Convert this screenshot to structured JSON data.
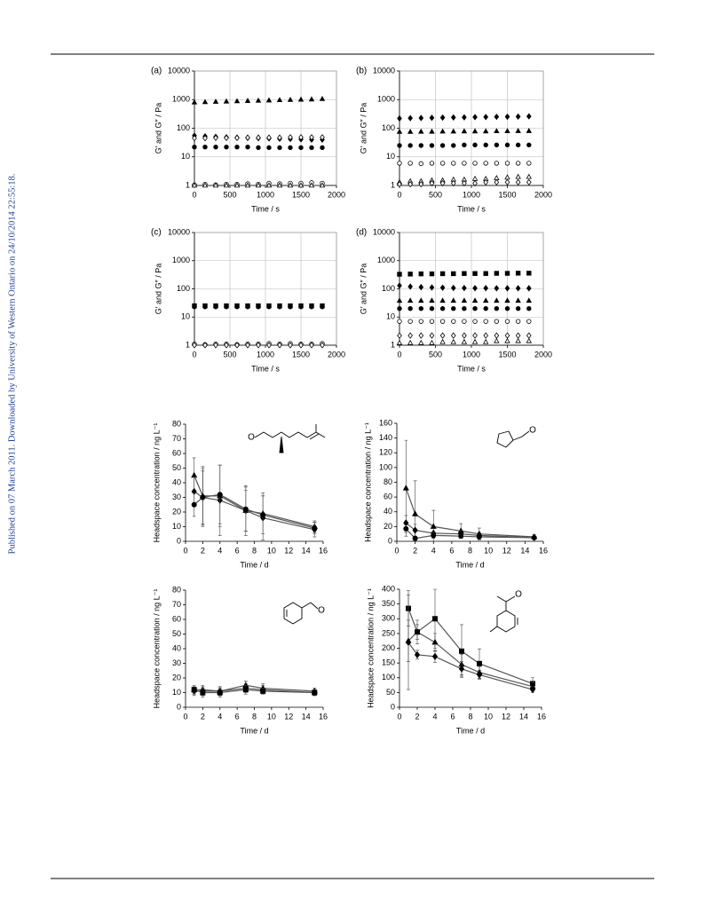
{
  "side_note": "Published on 07 March 2011. Downloaded by University of Western Ontario on 24/10/2014 22:55:18.",
  "chart_data": [
    {
      "type": "scatter",
      "panel": "(a)",
      "xlabel": "Time / s",
      "ylabel": "G′ and G″ / Pa",
      "ylog": true,
      "grid": true,
      "color": "#000000",
      "xlim": [
        0,
        2000
      ],
      "xticks": [
        0,
        500,
        1000,
        1500,
        2000
      ],
      "ylim": [
        1,
        10000
      ],
      "yticks": [
        1,
        10,
        100,
        1000,
        10000
      ],
      "x": [
        0,
        150,
        300,
        450,
        600,
        750,
        900,
        1050,
        1200,
        1350,
        1500,
        1650,
        1800
      ],
      "series": [
        {
          "marker": "triangle",
          "filled": true,
          "values": [
            800,
            820,
            840,
            860,
            880,
            900,
            920,
            940,
            960,
            980,
            1000,
            1020,
            1050
          ]
        },
        {
          "marker": "diamond",
          "filled": true,
          "values": [
            55,
            52,
            50,
            48,
            47,
            46,
            45,
            44,
            43,
            42,
            41,
            40,
            40
          ]
        },
        {
          "marker": "diamond",
          "filled": false,
          "values": [
            45,
            45,
            46,
            46,
            46,
            47,
            47,
            47,
            47,
            48,
            48,
            48,
            48
          ]
        },
        {
          "marker": "circle",
          "filled": true,
          "values": [
            22,
            22,
            22,
            22,
            22,
            22,
            21,
            21,
            21,
            21,
            21,
            21,
            21
          ]
        },
        {
          "marker": "circle",
          "filled": false,
          "values": [
            1.05,
            1.1,
            1.05,
            1.1,
            1.1,
            1.15,
            1.1,
            1.2,
            1.15,
            1.2,
            1.2,
            1.25,
            1.2
          ]
        },
        {
          "marker": "triangle",
          "filled": false,
          "values": [
            1,
            1,
            1,
            1,
            1,
            1,
            1,
            1,
            1,
            1,
            1,
            1,
            1
          ]
        }
      ]
    },
    {
      "type": "scatter",
      "panel": "(b)",
      "xlabel": "Time / s",
      "ylabel": "G′ and G″ / Pa",
      "ylog": true,
      "grid": true,
      "color": "#000000",
      "xlim": [
        0,
        2000
      ],
      "xticks": [
        0,
        500,
        1000,
        1500,
        2000
      ],
      "ylim": [
        1,
        10000
      ],
      "yticks": [
        1,
        10,
        100,
        1000,
        10000
      ],
      "x": [
        0,
        150,
        300,
        450,
        600,
        750,
        900,
        1050,
        1200,
        1350,
        1500,
        1650,
        1800
      ],
      "series": [
        {
          "marker": "diamond",
          "filled": true,
          "values": [
            220,
            225,
            228,
            232,
            235,
            238,
            240,
            244,
            246,
            250,
            252,
            256,
            260
          ]
        },
        {
          "marker": "triangle",
          "filled": true,
          "values": [
            75,
            75,
            76,
            76,
            77,
            77,
            78,
            78,
            78,
            79,
            79,
            80,
            80
          ]
        },
        {
          "marker": "circle",
          "filled": true,
          "values": [
            25,
            25,
            25,
            25,
            25,
            25,
            26,
            26,
            26,
            26,
            26,
            26,
            26
          ]
        },
        {
          "marker": "circle",
          "filled": false,
          "values": [
            6,
            6,
            5.8,
            6,
            6,
            6,
            6,
            6,
            6,
            6,
            6,
            6,
            6
          ]
        },
        {
          "marker": "triangle",
          "filled": false,
          "values": [
            1.3,
            1.4,
            1.4,
            1.5,
            1.5,
            1.6,
            1.6,
            1.7,
            1.7,
            1.8,
            1.9,
            2,
            2
          ]
        },
        {
          "marker": "diamond",
          "filled": false,
          "values": [
            1.1,
            1.1,
            1.1,
            1.2,
            1.2,
            1.2,
            1.2,
            1.2,
            1.3,
            1.3,
            1.3,
            1.3,
            1.3
          ]
        }
      ]
    },
    {
      "type": "scatter",
      "panel": "(c)",
      "xlabel": "Time / s",
      "ylabel": "G′ and G″ / Pa",
      "ylog": true,
      "grid": true,
      "color": "#000000",
      "xlim": [
        0,
        2000
      ],
      "xticks": [
        0,
        500,
        1000,
        1500,
        2000
      ],
      "ylim": [
        1,
        10000
      ],
      "yticks": [
        1,
        10,
        100,
        1000,
        10000
      ],
      "x": [
        0,
        150,
        300,
        450,
        600,
        750,
        900,
        1050,
        1200,
        1350,
        1500,
        1650,
        1800
      ],
      "series": [
        {
          "marker": "circle",
          "filled": true,
          "values": [
            23,
            23,
            23,
            23,
            23,
            23,
            23,
            23,
            23,
            23,
            23,
            23,
            23
          ]
        },
        {
          "marker": "square",
          "filled": true,
          "values": [
            25,
            25,
            25,
            25,
            25,
            25,
            25,
            25,
            25,
            25,
            25,
            25,
            25
          ]
        },
        {
          "marker": "circle",
          "filled": false,
          "values": [
            1.1,
            1.05,
            1.1,
            1.1,
            1.05,
            1.1,
            1.1,
            1.15,
            1.1,
            1.15,
            1.1,
            1.1,
            1.15
          ]
        },
        {
          "marker": "diamond",
          "filled": false,
          "values": [
            1,
            1,
            1,
            1,
            1,
            1,
            1,
            1,
            1,
            1,
            1,
            1,
            1
          ]
        }
      ]
    },
    {
      "type": "scatter",
      "panel": "(d)",
      "xlabel": "Time / s",
      "ylabel": "G′ and G″ / Pa",
      "ylog": true,
      "grid": true,
      "color": "#000000",
      "xlim": [
        0,
        2000
      ],
      "xticks": [
        0,
        500,
        1000,
        1500,
        2000
      ],
      "ylim": [
        1,
        10000
      ],
      "yticks": [
        1,
        10,
        100,
        1000,
        10000
      ],
      "x": [
        0,
        150,
        300,
        450,
        600,
        750,
        900,
        1050,
        1200,
        1350,
        1500,
        1650,
        1800
      ],
      "series": [
        {
          "marker": "square",
          "filled": true,
          "values": [
            330,
            335,
            340,
            340,
            345,
            345,
            350,
            350,
            350,
            355,
            355,
            360,
            360
          ]
        },
        {
          "marker": "diamond",
          "filled": true,
          "values": [
            130,
            120,
            115,
            112,
            110,
            108,
            107,
            106,
            106,
            105,
            105,
            105,
            105
          ]
        },
        {
          "marker": "triangle",
          "filled": true,
          "values": [
            38,
            38,
            38,
            38,
            38,
            38,
            38,
            38,
            38,
            38,
            38,
            38,
            38
          ]
        },
        {
          "marker": "circle",
          "filled": true,
          "values": [
            20,
            20,
            20,
            20,
            20,
            20,
            20,
            20,
            20,
            20,
            20,
            20,
            20
          ]
        },
        {
          "marker": "circle",
          "filled": false,
          "values": [
            7,
            7,
            7,
            7,
            7,
            7,
            7,
            7,
            7,
            7,
            7,
            7,
            7
          ]
        },
        {
          "marker": "diamond",
          "filled": false,
          "values": [
            2.2,
            2.2,
            2.2,
            2.2,
            2.2,
            2.2,
            2.2,
            2.2,
            2.2,
            2.2,
            2.2,
            2.2,
            2.2
          ]
        },
        {
          "marker": "triangle",
          "filled": false,
          "values": [
            1.2,
            1.2,
            1.2,
            1.2,
            1.3,
            1.3,
            1.3,
            1.3,
            1.3,
            1.4,
            1.4,
            1.4,
            1.4
          ]
        }
      ]
    },
    {
      "type": "line",
      "xlabel": "Time / d",
      "ylabel": "Headspace concentration / ng L⁻¹",
      "structure_atom": "O",
      "grid": false,
      "color": "#000000",
      "line_color": "#555555",
      "xlim": [
        0,
        16
      ],
      "xticks": [
        0,
        2,
        4,
        6,
        8,
        10,
        12,
        14,
        16
      ],
      "ylim": [
        0,
        80
      ],
      "yticks": [
        0,
        10,
        20,
        30,
        40,
        50,
        60,
        70,
        80
      ],
      "x": [
        1,
        2,
        4,
        7,
        9,
        15
      ],
      "series": [
        {
          "marker": "triangle",
          "filled": true,
          "values": [
            45,
            31,
            31,
            21,
            19,
            10
          ],
          "errors": [
            12,
            20,
            21,
            17,
            14,
            4
          ]
        },
        {
          "marker": "diamond",
          "filled": true,
          "values": [
            34,
            30,
            28,
            21,
            16,
            8
          ],
          "errors": [
            10,
            20,
            24,
            14,
            15,
            5
          ]
        },
        {
          "marker": "circle",
          "filled": true,
          "values": [
            25,
            30,
            32,
            22,
            18,
            9
          ],
          "errors": [
            8,
            18,
            20,
            15,
            13,
            4
          ]
        }
      ]
    },
    {
      "type": "line",
      "xlabel": "Time / d",
      "ylabel": "Headspace concentration / ng L⁻¹",
      "structure_atom": "O",
      "grid": false,
      "color": "#000000",
      "line_color": "#555555",
      "xlim": [
        0,
        16
      ],
      "xticks": [
        0,
        2,
        4,
        6,
        8,
        10,
        12,
        14,
        16
      ],
      "ylim": [
        0,
        160
      ],
      "yticks": [
        0,
        20,
        40,
        60,
        80,
        100,
        120,
        140,
        160
      ],
      "x": [
        1,
        2,
        4,
        7,
        9,
        15
      ],
      "series": [
        {
          "marker": "triangle",
          "filled": true,
          "values": [
            72,
            37,
            20,
            14,
            10,
            6
          ],
          "errors": [
            65,
            45,
            22,
            10,
            8,
            3
          ]
        },
        {
          "marker": "diamond",
          "filled": true,
          "values": [
            25,
            15,
            11,
            10,
            8,
            5
          ],
          "errors": [
            10,
            8,
            6,
            5,
            4,
            2
          ]
        },
        {
          "marker": "circle",
          "filled": true,
          "values": [
            17,
            4,
            8,
            7,
            6,
            5
          ],
          "errors": [
            5,
            3,
            4,
            3,
            3,
            2
          ]
        }
      ]
    },
    {
      "type": "line",
      "xlabel": "Time / d",
      "ylabel": "Headspace concentration / ng L⁻¹",
      "structure_atom": "O",
      "grid": false,
      "color": "#000000",
      "line_color": "#555555",
      "xlim": [
        0,
        16
      ],
      "xticks": [
        0,
        2,
        4,
        6,
        8,
        10,
        12,
        14,
        16
      ],
      "ylim": [
        0,
        80
      ],
      "yticks": [
        0,
        10,
        20,
        30,
        40,
        50,
        60,
        70,
        80
      ],
      "x": [
        1,
        2,
        4,
        7,
        9,
        15
      ],
      "series": [
        {
          "marker": "triangle",
          "filled": true,
          "values": [
            12,
            12,
            11,
            15,
            13,
            11
          ],
          "errors": [
            3,
            3,
            3,
            3,
            3,
            2
          ]
        },
        {
          "marker": "diamond",
          "filled": true,
          "values": [
            11,
            11,
            11,
            13,
            12,
            10
          ],
          "errors": [
            3,
            3,
            3,
            3,
            3,
            2
          ]
        },
        {
          "marker": "square",
          "filled": true,
          "values": [
            12,
            10,
            10,
            12,
            11,
            10
          ],
          "errors": [
            3,
            3,
            3,
            3,
            2,
            2
          ]
        }
      ]
    },
    {
      "type": "line",
      "xlabel": "Time / d",
      "ylabel": "Headspace concentration / ng L⁻¹",
      "structure_atom": "O",
      "grid": false,
      "color": "#000000",
      "line_color": "#555555",
      "xlim": [
        0,
        16
      ],
      "xticks": [
        0,
        2,
        4,
        6,
        8,
        10,
        12,
        14,
        16
      ],
      "ylim": [
        0,
        400
      ],
      "yticks": [
        0,
        50,
        100,
        150,
        200,
        250,
        300,
        350,
        400
      ],
      "x": [
        1,
        2,
        4,
        7,
        9,
        15
      ],
      "series": [
        {
          "marker": "square",
          "filled": true,
          "values": [
            335,
            255,
            300,
            190,
            148,
            80
          ],
          "errors": [
            60,
            40,
            100,
            90,
            50,
            20
          ]
        },
        {
          "marker": "triangle",
          "filled": true,
          "values": [
            225,
            255,
            220,
            145,
            118,
            70
          ],
          "errors": [
            70,
            25,
            30,
            35,
            20,
            15
          ]
        },
        {
          "marker": "diamond",
          "filled": true,
          "values": [
            220,
            178,
            172,
            130,
            110,
            60
          ],
          "errors": [
            160,
            15,
            20,
            25,
            15,
            10
          ]
        }
      ]
    }
  ]
}
